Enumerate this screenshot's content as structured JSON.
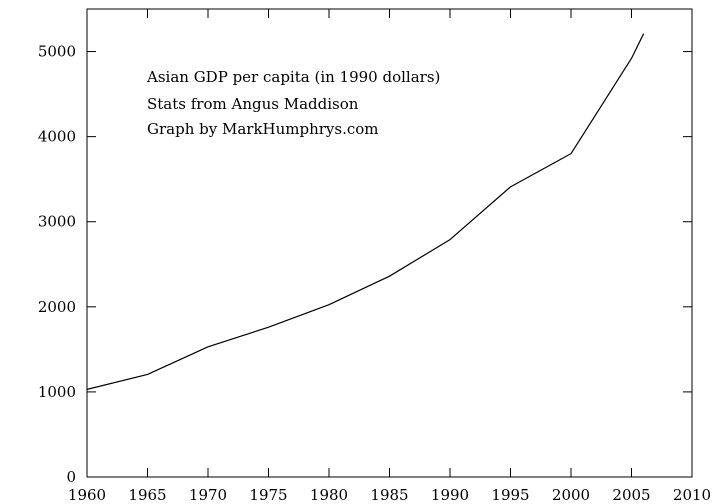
{
  "chart_data": {
    "type": "line",
    "title": "",
    "xlabel": "",
    "ylabel": "",
    "xlim": [
      1960,
      2010
    ],
    "ylim": [
      0,
      5500
    ],
    "x_ticks": [
      1960,
      1965,
      1970,
      1975,
      1980,
      1985,
      1990,
      1995,
      2000,
      2005,
      2010
    ],
    "y_ticks": [
      0,
      1000,
      2000,
      3000,
      4000,
      5000
    ],
    "x_tick_labels": [
      "1960",
      "1965",
      "1970",
      "1975",
      "1980",
      "1985",
      "1990",
      "1995",
      "2000",
      "2005",
      "2010"
    ],
    "y_tick_labels": [
      "0",
      "1000",
      "2000",
      "3000",
      "4000",
      "5000"
    ],
    "grid": false,
    "legend": "none",
    "annotations": [
      "Asian GDP per capita (in 1990 dollars)",
      "Stats from Angus Maddison",
      "Graph by MarkHumphrys.com"
    ],
    "series": [
      {
        "color": "#000000",
        "x": [
          1960,
          1965,
          1970,
          1975,
          1980,
          1985,
          1990,
          1995,
          2000,
          2005,
          2006
        ],
        "y": [
          1030,
          1205,
          1530,
          1760,
          2025,
          2360,
          2790,
          3410,
          3800,
          4920,
          5210
        ]
      }
    ]
  }
}
